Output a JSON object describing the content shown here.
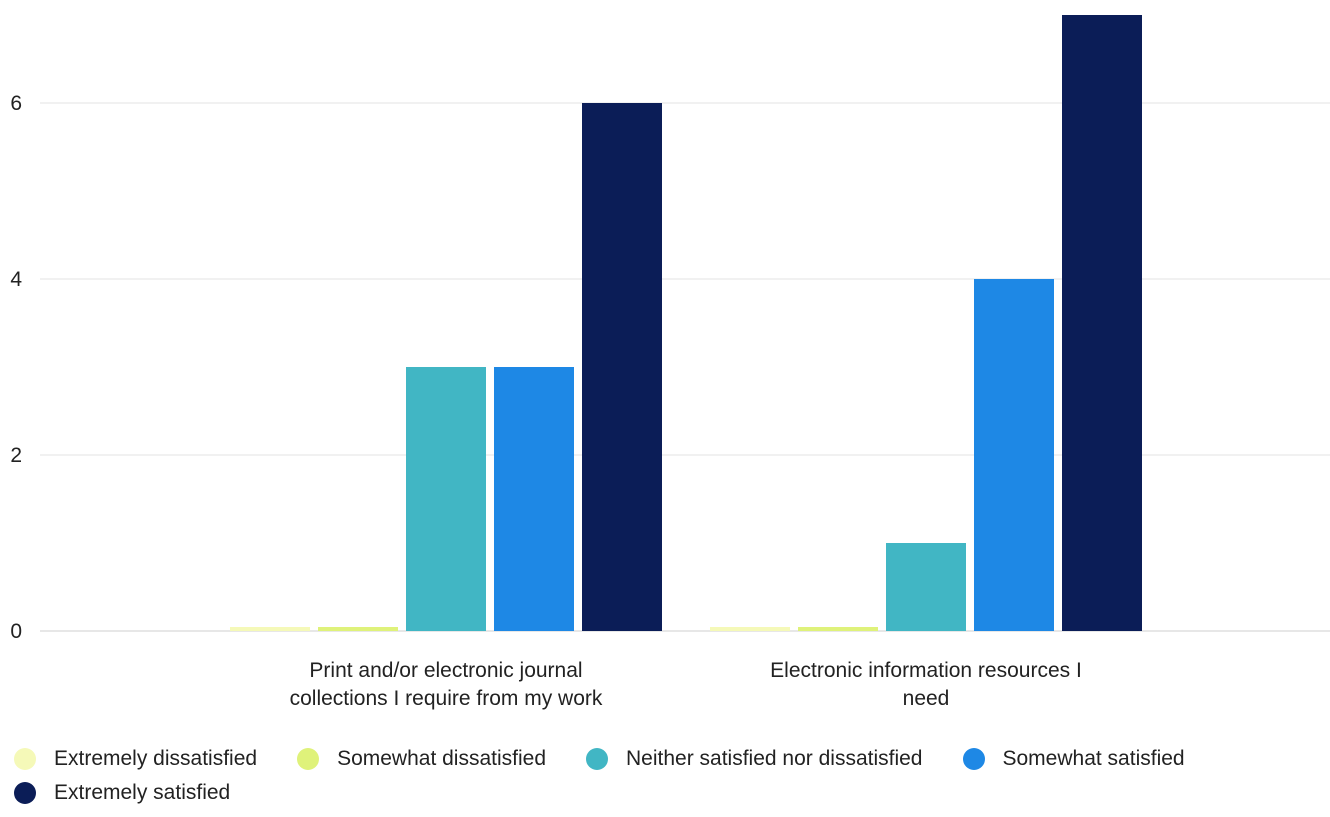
{
  "chart_data": {
    "type": "bar",
    "categories": [
      "Print and/or electronic journal collections I require from my work",
      "Electronic information resources I need"
    ],
    "category_lines": [
      [
        "Print and/or electronic journal",
        "collections I require from my work"
      ],
      [
        "Electronic information resources I",
        "need"
      ]
    ],
    "series": [
      {
        "name": "Extremely dissatisfied",
        "color": "#f5f9b8",
        "values": [
          0,
          0
        ]
      },
      {
        "name": "Somewhat dissatisfied",
        "color": "#dff27a",
        "values": [
          0,
          0
        ]
      },
      {
        "name": "Neither satisfied nor dissatisfied",
        "color": "#41b6c4",
        "values": [
          3,
          1
        ]
      },
      {
        "name": "Somewhat satisfied",
        "color": "#1e88e5",
        "values": [
          3,
          4
        ]
      },
      {
        "name": "Extremely satisfied",
        "color": "#0b1d57",
        "values": [
          6,
          7
        ]
      }
    ],
    "yticks": [
      "0",
      "2",
      "4",
      "6"
    ],
    "ylim": [
      0,
      7
    ],
    "grid": true,
    "legend_position": "bottom",
    "title": "",
    "xlabel": "",
    "ylabel": ""
  }
}
